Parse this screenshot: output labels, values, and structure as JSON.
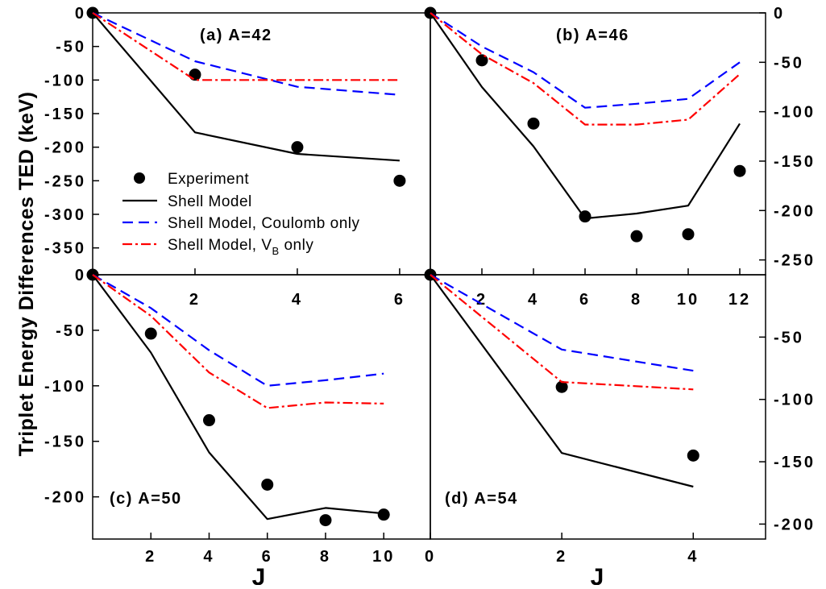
{
  "figure": {
    "ylabel": "Triplet Energy Differences TED (keV)",
    "xlabel": "J"
  },
  "legend": {
    "entries": [
      {
        "key": "exp",
        "label": "Experiment",
        "sub": ""
      },
      {
        "key": "sm",
        "label": "Shell Model",
        "sub": ""
      },
      {
        "key": "coul",
        "label": "Shell Model, Coulomb only",
        "sub": ""
      },
      {
        "key": "vb",
        "label_pre": "Shell Model, V",
        "sub": "B",
        "label_post": " only"
      }
    ]
  },
  "colors": {
    "experiment": "#000000",
    "shell_model": "#000000",
    "coulomb_only": "#0000ff",
    "vb_only": "#ff0000"
  },
  "chart_data": [
    {
      "type": "line",
      "panel": "a",
      "label": "(a) A=42",
      "xlim": [
        0,
        6.6
      ],
      "ylim": [
        -390,
        0
      ],
      "xticks": [
        2,
        4,
        6
      ],
      "yticks": [
        0,
        -50,
        -100,
        -150,
        -200,
        -250,
        -300,
        -350
      ],
      "series": [
        {
          "name": "Experiment",
          "style": "markers",
          "x": [
            0,
            2,
            4,
            6
          ],
          "y": [
            0,
            -92,
            -200,
            -250
          ]
        },
        {
          "name": "Shell Model",
          "style": "solid",
          "x": [
            0,
            2,
            4,
            6
          ],
          "y": [
            0,
            -178,
            -210,
            -220
          ]
        },
        {
          "name": "Shell Model, Coulomb only",
          "style": "dashed",
          "x": [
            0,
            2,
            4,
            6
          ],
          "y": [
            0,
            -72,
            -110,
            -122
          ]
        },
        {
          "name": "Shell Model, V_B only",
          "style": "dashdot",
          "x": [
            0,
            2,
            4,
            6
          ],
          "y": [
            0,
            -100,
            -100,
            -100
          ]
        }
      ]
    },
    {
      "type": "line",
      "panel": "b",
      "label": "(b) A=46",
      "xlim": [
        0,
        13
      ],
      "ylim": [
        -265,
        0
      ],
      "xticks": [
        2,
        4,
        6,
        8,
        10,
        12
      ],
      "yticks": [
        0,
        -50,
        -100,
        -150,
        -200,
        -250
      ],
      "series": [
        {
          "name": "Experiment",
          "style": "markers",
          "x": [
            0,
            2,
            4,
            6,
            8,
            10,
            12
          ],
          "y": [
            0,
            -48,
            -112,
            -206,
            -226,
            -224,
            -160
          ]
        },
        {
          "name": "Shell Model",
          "style": "solid",
          "x": [
            0,
            2,
            4,
            6,
            8,
            10,
            12
          ],
          "y": [
            0,
            -75,
            -135,
            -208,
            -203,
            -195,
            -112
          ]
        },
        {
          "name": "Shell Model, Coulomb only",
          "style": "dashed",
          "x": [
            0,
            2,
            4,
            6,
            8,
            10,
            12
          ],
          "y": [
            0,
            -34,
            -60,
            -96,
            -92,
            -87,
            -50
          ]
        },
        {
          "name": "Shell Model, V_B only",
          "style": "dashdot",
          "x": [
            0,
            2,
            4,
            6,
            8,
            10,
            12
          ],
          "y": [
            0,
            -42,
            -71,
            -113,
            -113,
            -108,
            -62
          ]
        }
      ]
    },
    {
      "type": "line",
      "panel": "c",
      "label": "(c) A=50",
      "xlim": [
        0,
        11.6
      ],
      "ylim": [
        -238,
        0
      ],
      "xticks": [
        2,
        4,
        6,
        8,
        10
      ],
      "yticks": [
        0,
        -50,
        -100,
        -150,
        -200
      ],
      "series": [
        {
          "name": "Experiment",
          "style": "markers",
          "x": [
            0,
            2,
            4,
            6,
            8,
            10
          ],
          "y": [
            0,
            -53,
            -131,
            -189,
            -221,
            -216
          ]
        },
        {
          "name": "Shell Model",
          "style": "solid",
          "x": [
            0,
            2,
            4,
            6,
            8,
            10
          ],
          "y": [
            0,
            -70,
            -160,
            -220,
            -210,
            -215
          ]
        },
        {
          "name": "Shell Model, Coulomb only",
          "style": "dashed",
          "x": [
            0,
            2,
            4,
            6,
            8,
            10
          ],
          "y": [
            0,
            -30,
            -68,
            -100,
            -95,
            -89
          ]
        },
        {
          "name": "Shell Model, V_B only",
          "style": "dashdot",
          "x": [
            0,
            2,
            4,
            6,
            8,
            10
          ],
          "y": [
            0,
            -37,
            -88,
            -120,
            -115,
            -116
          ]
        }
      ]
    },
    {
      "type": "line",
      "panel": "d",
      "label": "(d) A=54",
      "xlim": [
        0,
        5.1
      ],
      "ylim": [
        -212,
        0
      ],
      "xticks": [
        0,
        2,
        4
      ],
      "yticks": [
        -50,
        -100,
        -150,
        -200
      ],
      "series": [
        {
          "name": "Experiment",
          "style": "markers",
          "x": [
            0,
            2,
            4
          ],
          "y": [
            0,
            -90,
            -145
          ]
        },
        {
          "name": "Shell Model",
          "style": "solid",
          "x": [
            0,
            2,
            4
          ],
          "y": [
            0,
            -143,
            -170
          ]
        },
        {
          "name": "Shell Model, Coulomb only",
          "style": "dashed",
          "x": [
            0,
            2,
            4
          ],
          "y": [
            0,
            -60,
            -77
          ]
        },
        {
          "name": "Shell Model, V_B only",
          "style": "dashdot",
          "x": [
            0,
            2,
            4
          ],
          "y": [
            0,
            -86,
            -92
          ]
        }
      ]
    }
  ]
}
